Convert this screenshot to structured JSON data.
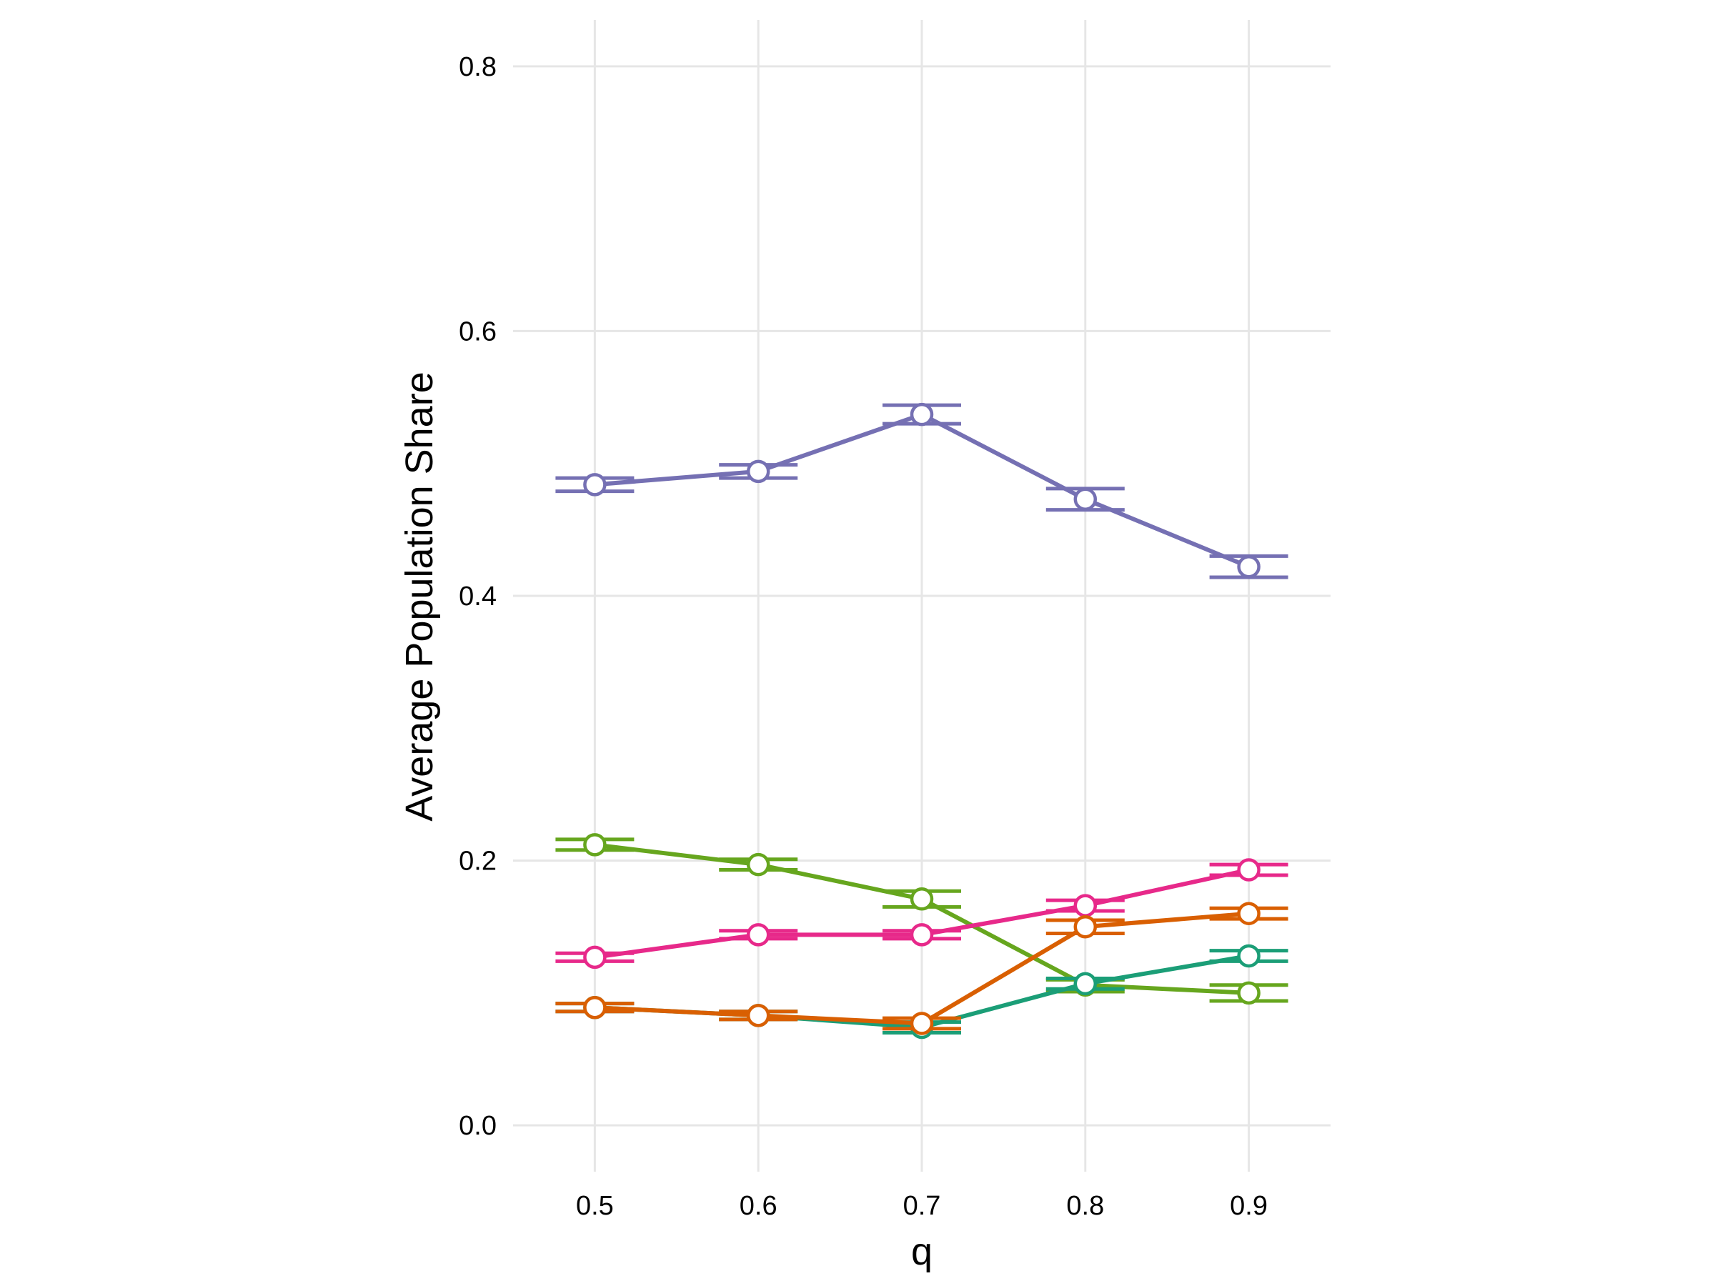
{
  "chart_data": {
    "type": "line",
    "title": "",
    "xlabel": "q",
    "ylabel": "Average Population Share",
    "x": [
      0.5,
      0.6,
      0.7,
      0.8,
      0.9
    ],
    "x_tick_labels": [
      "0.5",
      "0.6",
      "0.7",
      "0.8",
      "0.9"
    ],
    "xlim": [
      0.45,
      0.95
    ],
    "ylim": [
      -0.035,
      0.835
    ],
    "y_ticks": [
      0.0,
      0.2,
      0.4,
      0.6,
      0.8
    ],
    "y_tick_labels": [
      "0.0",
      "0.2",
      "0.4",
      "0.6",
      "0.8"
    ],
    "grid": true,
    "legend": "none",
    "series": [
      {
        "color": "#7570b3",
        "values": [
          0.484,
          0.494,
          0.537,
          0.473,
          0.422
        ],
        "err_lower": [
          0.479,
          0.489,
          0.53,
          0.465,
          0.414
        ],
        "err_upper": [
          0.489,
          0.499,
          0.544,
          0.481,
          0.43
        ]
      },
      {
        "color": "#66a61e",
        "values": [
          0.212,
          0.197,
          0.171,
          0.106,
          0.1
        ],
        "err_lower": [
          0.208,
          0.193,
          0.165,
          0.101,
          0.094
        ],
        "err_upper": [
          0.216,
          0.201,
          0.177,
          0.11,
          0.106
        ]
      },
      {
        "color": "#e7298a",
        "values": [
          0.127,
          0.144,
          0.144,
          0.166,
          0.193
        ],
        "err_lower": [
          0.124,
          0.141,
          0.141,
          0.162,
          0.189
        ],
        "err_upper": [
          0.13,
          0.147,
          0.147,
          0.17,
          0.197
        ]
      },
      {
        "color": "#1b9e77",
        "values": [
          0.089,
          0.083,
          0.074,
          0.107,
          0.128
        ],
        "err_lower": [
          0.086,
          0.08,
          0.07,
          0.103,
          0.124
        ],
        "err_upper": [
          0.092,
          0.086,
          0.078,
          0.111,
          0.132
        ]
      },
      {
        "color": "#d95f02",
        "values": [
          0.089,
          0.083,
          0.077,
          0.15,
          0.16
        ],
        "err_lower": [
          0.086,
          0.08,
          0.073,
          0.145,
          0.156
        ],
        "err_upper": [
          0.092,
          0.086,
          0.081,
          0.155,
          0.164
        ]
      }
    ]
  }
}
